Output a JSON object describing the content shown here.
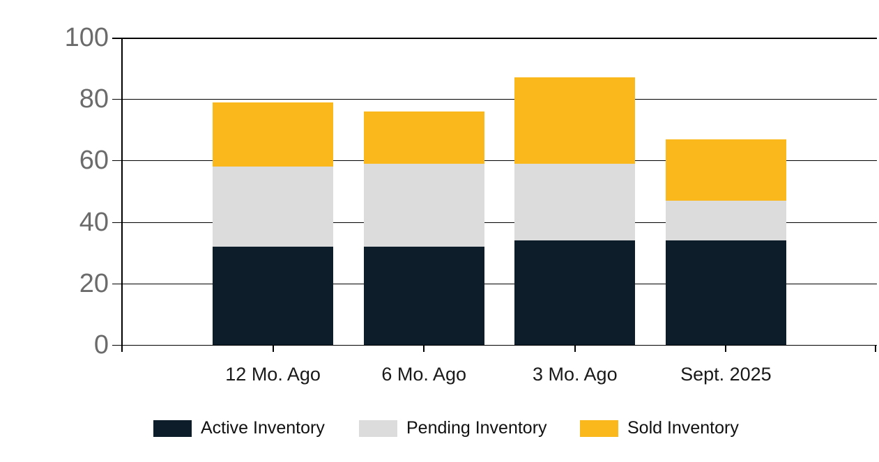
{
  "chart_data": {
    "type": "bar",
    "stacked": true,
    "title": "",
    "xlabel": "",
    "ylabel": "",
    "categories": [
      "12 Mo. Ago",
      "6 Mo. Ago",
      "3 Mo. Ago",
      "Sept. 2025"
    ],
    "series": [
      {
        "name": "Active Inventory",
        "color": "#0d1e2a",
        "values": [
          32,
          32,
          34,
          34
        ]
      },
      {
        "name": "Pending Inventory",
        "color": "#dcdcdc",
        "values": [
          26,
          27,
          25,
          13
        ]
      },
      {
        "name": "Sold Inventory",
        "color": "#fbb81c",
        "values": [
          21,
          17,
          28,
          20
        ]
      }
    ],
    "stack_totals": [
      79,
      76,
      87,
      67
    ],
    "ylim": [
      0,
      100
    ],
    "yticks": [
      0,
      20,
      40,
      60,
      80,
      100
    ],
    "grid": true,
    "legend_position": "bottom",
    "colors": {
      "grid": "#000000",
      "y_tick_label": "#6b6b6b",
      "x_tick_label": "#191919",
      "legend_label": "#111111",
      "background": "#ffffff"
    }
  }
}
